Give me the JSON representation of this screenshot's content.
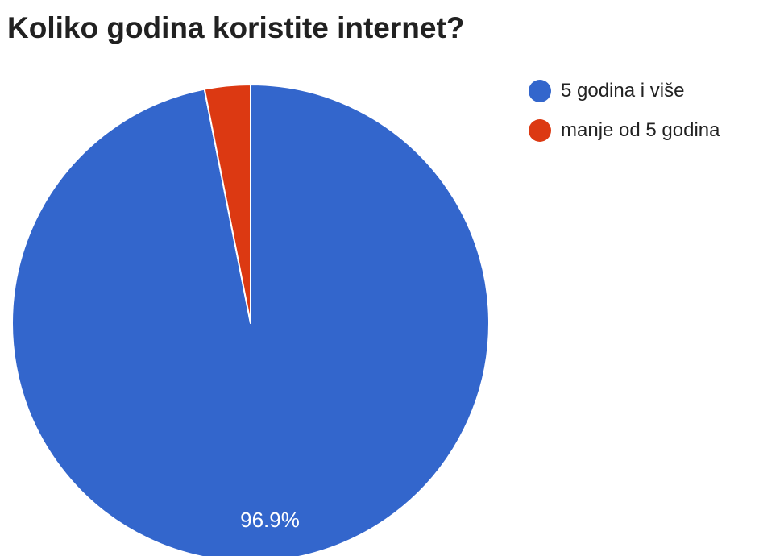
{
  "chart_data": {
    "type": "pie",
    "title": "Koliko godina koristite internet?",
    "categories": [
      "5 godina i više",
      "manje od 5 godina"
    ],
    "values": [
      96.9,
      3.1
    ],
    "colors": [
      "#3366cc",
      "#dc3912"
    ],
    "slice_labels": [
      "96.9%",
      ""
    ],
    "legend_position": "right"
  }
}
